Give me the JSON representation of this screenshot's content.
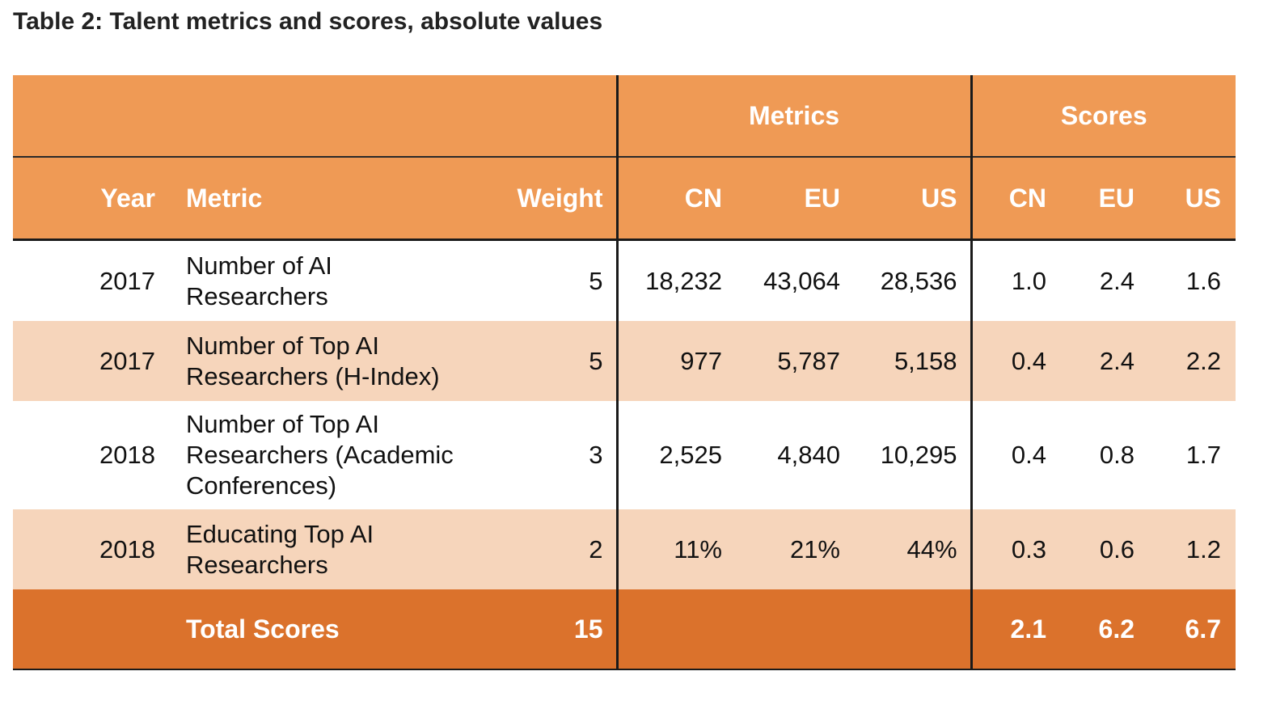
{
  "caption": "Table 2: Talent metrics and scores, absolute values",
  "header": {
    "group_metrics": "Metrics",
    "group_scores": "Scores",
    "year": "Year",
    "metric": "Metric",
    "weight": "Weight",
    "metrics_cn": "CN",
    "metrics_eu": "EU",
    "metrics_us": "US",
    "scores_cn": "CN",
    "scores_eu": "EU",
    "scores_us": "US"
  },
  "rows": [
    {
      "year": "2017",
      "metric_lines": [
        "Number of AI",
        "Researchers"
      ],
      "weight": "5",
      "metrics": {
        "cn": "18,232",
        "eu": "43,064",
        "us": "28,536"
      },
      "scores": {
        "cn": "1.0",
        "eu": "2.4",
        "us": "1.6"
      }
    },
    {
      "year": "2017",
      "metric_lines": [
        "Number of Top AI",
        "Researchers (H-Index)"
      ],
      "weight": "5",
      "metrics": {
        "cn": "977",
        "eu": "5,787",
        "us": "5,158"
      },
      "scores": {
        "cn": "0.4",
        "eu": "2.4",
        "us": "2.2"
      }
    },
    {
      "year": "2018",
      "metric_lines": [
        "Number of Top AI",
        "Researchers (Academic",
        "Conferences)"
      ],
      "weight": "3",
      "metrics": {
        "cn": "2,525",
        "eu": "4,840",
        "us": "10,295"
      },
      "scores": {
        "cn": "0.4",
        "eu": "0.8",
        "us": "1.7"
      }
    },
    {
      "year": "2018",
      "metric_lines": [
        "Educating Top AI",
        "Researchers"
      ],
      "weight": "2",
      "metrics": {
        "cn": "11%",
        "eu": "21%",
        "us": "44%"
      },
      "scores": {
        "cn": "0.3",
        "eu": "0.6",
        "us": "1.2"
      }
    }
  ],
  "total": {
    "label": "Total Scores",
    "weight": "15",
    "scores": {
      "cn": "2.1",
      "eu": "6.2",
      "us": "6.7"
    }
  },
  "colors": {
    "header_bg": "#ef9a55",
    "tint_row_bg": "#f6d5bb",
    "total_bg": "#db722c"
  }
}
